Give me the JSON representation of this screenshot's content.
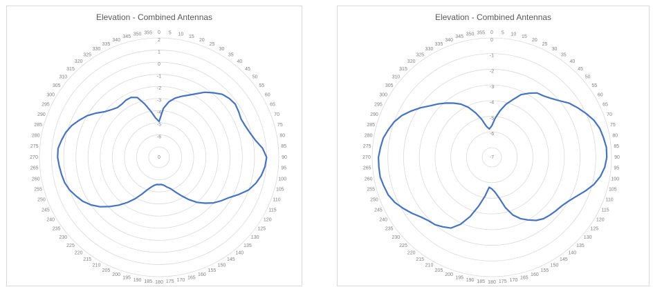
{
  "chart_data": [
    {
      "type": "polar-line",
      "title": "Elevation - Combined Antennas",
      "angles": [
        0,
        5,
        10,
        15,
        20,
        25,
        30,
        35,
        40,
        45,
        50,
        55,
        60,
        65,
        70,
        75,
        80,
        85,
        90,
        95,
        100,
        105,
        110,
        115,
        120,
        125,
        130,
        135,
        140,
        145,
        150,
        155,
        160,
        165,
        170,
        175,
        180,
        185,
        190,
        195,
        200,
        205,
        210,
        215,
        220,
        225,
        230,
        235,
        240,
        245,
        250,
        255,
        260,
        265,
        270,
        275,
        280,
        285,
        290,
        295,
        300,
        305,
        310,
        315,
        320,
        325,
        330,
        335,
        340,
        345,
        350,
        355
      ],
      "radial_ticks": [
        2,
        1,
        0,
        -1,
        -2,
        -3,
        -4,
        -5,
        -6
      ],
      "center_label": "0",
      "series": [
        {
          "color": "#4472c4",
          "values": [
            -4.9,
            -3.8,
            -3.2,
            -2.8,
            -2.5,
            -2.2,
            -1.8,
            -1.3,
            -0.9,
            -0.5,
            -0.3,
            -0.2,
            -0.3,
            -0.4,
            -0.3,
            -0.1,
            0.2,
            0.7,
            1.0,
            0.9,
            0.7,
            0.4,
            0.0,
            -0.6,
            -1.2,
            -1.6,
            -2.0,
            -2.5,
            -3.0,
            -3.6,
            -4.2,
            -4.7,
            -5.1,
            -5.3,
            -5.5,
            -5.6,
            -5.6,
            -5.6,
            -5.5,
            -5.3,
            -5.0,
            -4.5,
            -3.9,
            -3.3,
            -2.7,
            -2.1,
            -1.5,
            -1.0,
            -0.6,
            -0.3,
            0.0,
            0.2,
            0.3,
            0.4,
            0.5,
            0.5,
            0.3,
            0.1,
            -0.2,
            -0.6,
            -1.0,
            -1.5,
            -2.0,
            -2.3,
            -2.5,
            -2.5,
            -2.4,
            -2.4,
            -2.6,
            -3.3,
            -4.0,
            -4.6
          ]
        }
      ]
    },
    {
      "type": "polar-line",
      "title": "Elevation - Combined Antennas",
      "angles": [
        0,
        5,
        10,
        15,
        20,
        25,
        30,
        35,
        40,
        45,
        50,
        55,
        60,
        65,
        70,
        75,
        80,
        85,
        90,
        95,
        100,
        105,
        110,
        115,
        120,
        125,
        130,
        135,
        140,
        145,
        150,
        155,
        160,
        165,
        170,
        175,
        180,
        185,
        190,
        195,
        200,
        205,
        210,
        215,
        220,
        225,
        230,
        235,
        240,
        245,
        250,
        255,
        260,
        265,
        270,
        275,
        280,
        285,
        290,
        295,
        300,
        305,
        310,
        315,
        320,
        325,
        330,
        335,
        340,
        345,
        350,
        355
      ],
      "radial_ticks": [
        0,
        -1,
        -2,
        -3,
        -4,
        -5,
        -6
      ],
      "center_label": "-7",
      "series": [
        {
          "color": "#4472c4",
          "values": [
            -5.6,
            -5.1,
            -4.6,
            -4.1,
            -3.7,
            -3.2,
            -2.9,
            -2.6,
            -2.5,
            -2.3,
            -2.0,
            -1.6,
            -1.3,
            -1.0,
            -0.7,
            -0.5,
            -0.4,
            -0.3,
            -0.3,
            -0.4,
            -0.6,
            -0.9,
            -1.3,
            -1.7,
            -2.0,
            -2.2,
            -2.3,
            -2.4,
            -2.5,
            -2.7,
            -3.0,
            -3.3,
            -3.7,
            -4.3,
            -5.0,
            -5.4,
            -5.6,
            -5.7,
            -5.1,
            -4.4,
            -3.6,
            -2.9,
            -2.4,
            -2.2,
            -2.0,
            -1.9,
            -1.7,
            -1.4,
            -1.1,
            -0.8,
            -0.6,
            -0.5,
            -0.4,
            -0.4,
            -0.4,
            -0.5,
            -0.6,
            -0.8,
            -1.0,
            -1.3,
            -1.7,
            -2.1,
            -2.5,
            -2.8,
            -3.1,
            -3.4,
            -3.7,
            -4.1,
            -4.6,
            -5.1,
            -5.6,
            -5.8
          ]
        }
      ]
    }
  ]
}
